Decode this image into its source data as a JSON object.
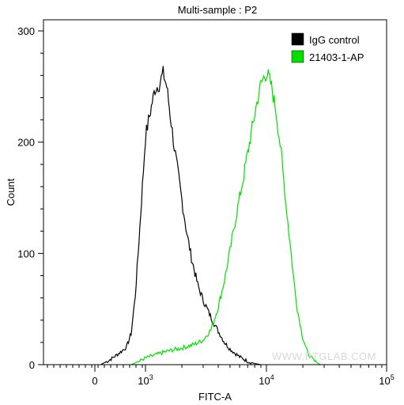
{
  "chart_data": {
    "type": "line",
    "title": "Multi-sample : P2",
    "xlabel": "FITC-A",
    "ylabel": "Count",
    "xscale": "biexponential",
    "ylim": [
      0,
      310
    ],
    "y_ticks": [
      "0",
      "100",
      "200",
      "300"
    ],
    "x_ticks": [
      {
        "base": "0",
        "exp": ""
      },
      {
        "base": "10",
        "exp": "3"
      },
      {
        "base": "10",
        "exp": "4"
      },
      {
        "base": "10",
        "exp": "5"
      }
    ],
    "legend_position": "top-right",
    "watermark": "WWW.PTGLAB.COM",
    "series": [
      {
        "name": "IgG control",
        "color": "#000000",
        "x": [
          80,
          200,
          300,
          400,
          500,
          600,
          700,
          800,
          900,
          1000,
          1100,
          1200,
          1300,
          1400,
          1500,
          1600,
          1700,
          1800,
          2000,
          2200,
          2400,
          2700,
          3000,
          3500,
          4000,
          4500,
          5000,
          6000,
          7000,
          8000,
          9000
        ],
        "values": [
          0,
          4,
          8,
          12,
          16,
          28,
          62,
          112,
          160,
          205,
          228,
          248,
          252,
          262,
          250,
          225,
          202,
          182,
          148,
          118,
          96,
          72,
          58,
          42,
          30,
          20,
          14,
          7,
          3,
          1,
          0
        ]
      },
      {
        "name": "21403-1-AP",
        "color": "#00e000",
        "x": [
          600,
          800,
          1000,
          1500,
          2000,
          2500,
          3000,
          3500,
          4000,
          4500,
          5000,
          5500,
          6000,
          6500,
          7000,
          7500,
          8000,
          8500,
          9000,
          9500,
          10000,
          10500,
          11000,
          12000,
          13000,
          14000,
          15000,
          16000,
          17000,
          18000,
          20000,
          22000,
          25000,
          28000
        ],
        "values": [
          0,
          3,
          6,
          12,
          15,
          18,
          22,
          32,
          52,
          76,
          102,
          128,
          150,
          170,
          190,
          208,
          225,
          240,
          252,
          258,
          262,
          258,
          250,
          228,
          198,
          162,
          130,
          100,
          72,
          50,
          24,
          10,
          3,
          0
        ]
      }
    ]
  }
}
